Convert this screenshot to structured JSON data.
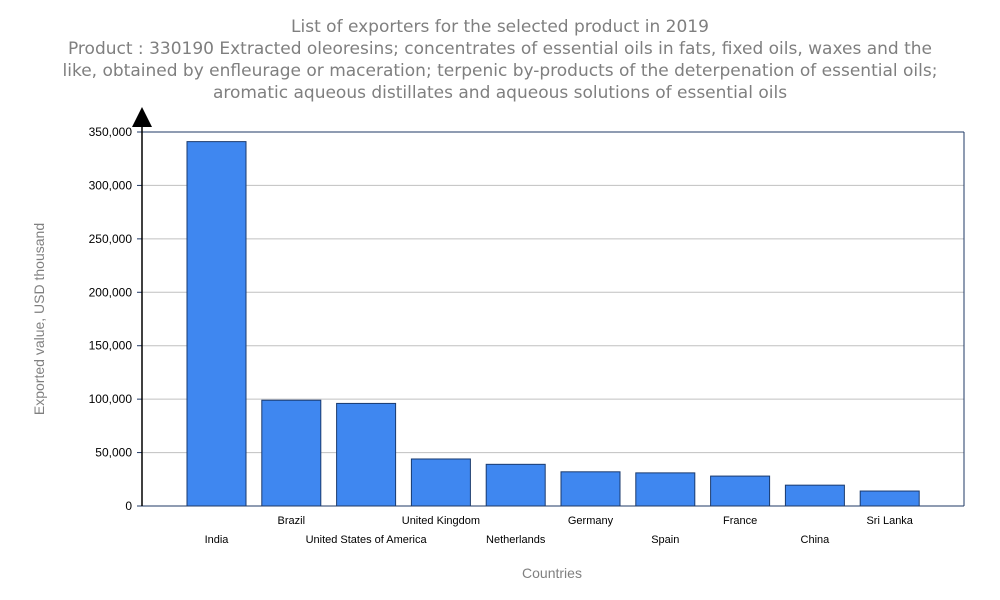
{
  "chart_data": {
    "type": "bar",
    "title": "List of exporters for the selected product in 2019",
    "subtitle_lines": [
      "Product : 330190 Extracted oleoresins; concentrates of essential oils in fats, fixed oils, waxes and the",
      "like, obtained by enfleurage or maceration; terpenic by-products of the deterpenation of essential oils;",
      "aromatic aqueous distillates and aqueous solutions of essential oils"
    ],
    "xlabel": "Countries",
    "ylabel": "Exported value, USD thousand",
    "categories": [
      "India",
      "Brazil",
      "United States of America",
      "United Kingdom",
      "Netherlands",
      "Germany",
      "Spain",
      "France",
      "China",
      "Sri Lanka"
    ],
    "values": [
      341000,
      99000,
      96000,
      44000,
      39000,
      32000,
      31000,
      28000,
      19500,
      14000
    ],
    "ylim": [
      0,
      350000
    ],
    "yticks": [
      0,
      50000,
      100000,
      150000,
      200000,
      250000,
      300000,
      350000
    ],
    "ytick_labels": [
      "0",
      "50,000",
      "100,000",
      "150,000",
      "200,000",
      "250,000",
      "300,000",
      "350,000"
    ],
    "grid": true,
    "bar_color": "#3f87f0",
    "bar_border_color": "#1a3a6e",
    "axis_color": "#1f3864",
    "grid_color": "#c0c0c0"
  }
}
